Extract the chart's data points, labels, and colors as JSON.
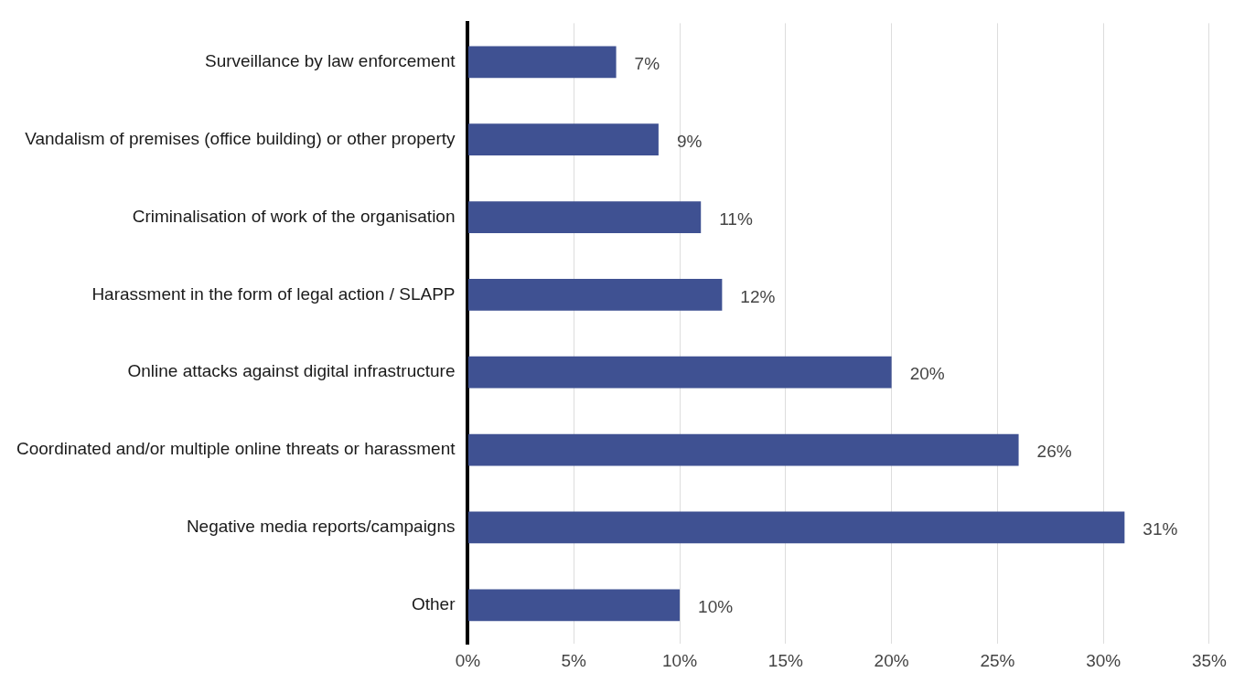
{
  "chart_data": {
    "type": "bar",
    "orientation": "horizontal",
    "categories": [
      "Surveillance by law enforcement",
      "Vandalism of premises (office building) or other property",
      "Criminalisation of work of the organisation",
      "Harassment in the form of legal action / SLAPP",
      "Online attacks against digital infrastructure",
      "Coordinated and/or multiple online threats or harassment",
      "Negative media reports/campaigns",
      "Other"
    ],
    "values": [
      7,
      9,
      11,
      12,
      20,
      26,
      31,
      10
    ],
    "value_labels": [
      "7%",
      "9%",
      "11%",
      "12%",
      "20%",
      "26%",
      "31%",
      "10%"
    ],
    "color": "#3f5192",
    "xlim": [
      0,
      35
    ],
    "xticks": [
      {
        "value": 0,
        "label": "0%"
      },
      {
        "value": 5,
        "label": "5%"
      },
      {
        "value": 10,
        "label": "10%"
      },
      {
        "value": 15,
        "label": "15%"
      },
      {
        "value": 20,
        "label": "20%"
      },
      {
        "value": 25,
        "label": "25%"
      },
      {
        "value": 30,
        "label": "30%"
      },
      {
        "value": 35,
        "label": "35%"
      }
    ],
    "grid": "x",
    "legend": false
  }
}
